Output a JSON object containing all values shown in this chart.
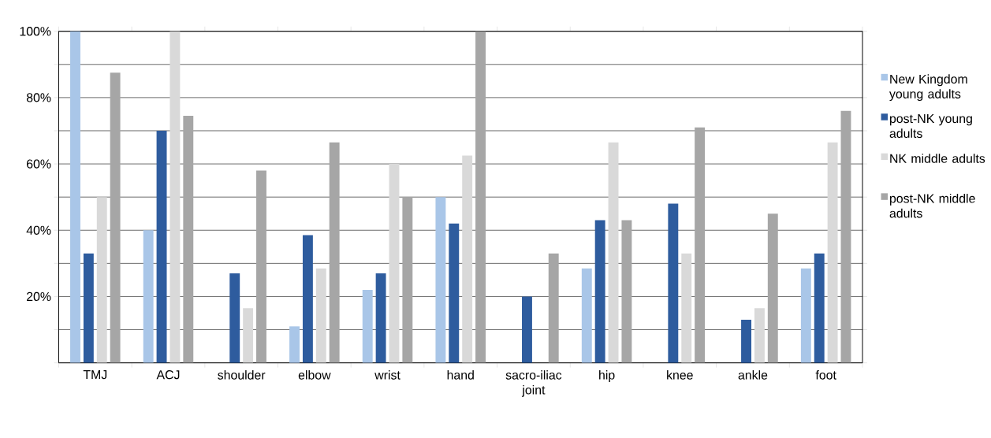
{
  "chart_data": {
    "type": "bar",
    "categories": [
      "TMJ",
      "ACJ",
      "shoulder",
      "elbow",
      "wrist",
      "hand",
      "sacro-iliac joint",
      "hip",
      "knee",
      "ankle",
      "foot"
    ],
    "series": [
      {
        "name": "New Kingdom young adults",
        "color": "#a9c6e8",
        "values": [
          100,
          40,
          0,
          11,
          22,
          50,
          0,
          28.5,
          0,
          0,
          28.5
        ]
      },
      {
        "name": "post-NK young adults",
        "color": "#2e5c9e",
        "values": [
          33,
          70,
          27,
          38.5,
          27,
          42,
          20,
          43,
          48,
          13,
          33
        ]
      },
      {
        "name": "NK middle adults",
        "color": "#d9d9d9",
        "values": [
          50,
          100,
          16.5,
          28.5,
          60,
          62.5,
          0,
          66.5,
          33,
          16.5,
          66.5
        ]
      },
      {
        "name": "post-NK middle adults",
        "color": "#a6a6a6",
        "values": [
          87.5,
          74.5,
          58,
          66.5,
          50,
          100,
          33,
          43,
          71,
          45,
          76
        ]
      }
    ],
    "ylim": [
      0,
      100
    ],
    "yticks": [
      {
        "value": 0,
        "label": null
      },
      {
        "value": 10,
        "label": null
      },
      {
        "value": 20,
        "label": "20%"
      },
      {
        "value": 30,
        "label": null
      },
      {
        "value": 40,
        "label": "40%"
      },
      {
        "value": 50,
        "label": null
      },
      {
        "value": 60,
        "label": "60%"
      },
      {
        "value": 70,
        "label": null
      },
      {
        "value": 80,
        "label": "80%"
      },
      {
        "value": 90,
        "label": null
      },
      {
        "value": 100,
        "label": "100%"
      }
    ],
    "grid": "y",
    "legend": "right"
  }
}
